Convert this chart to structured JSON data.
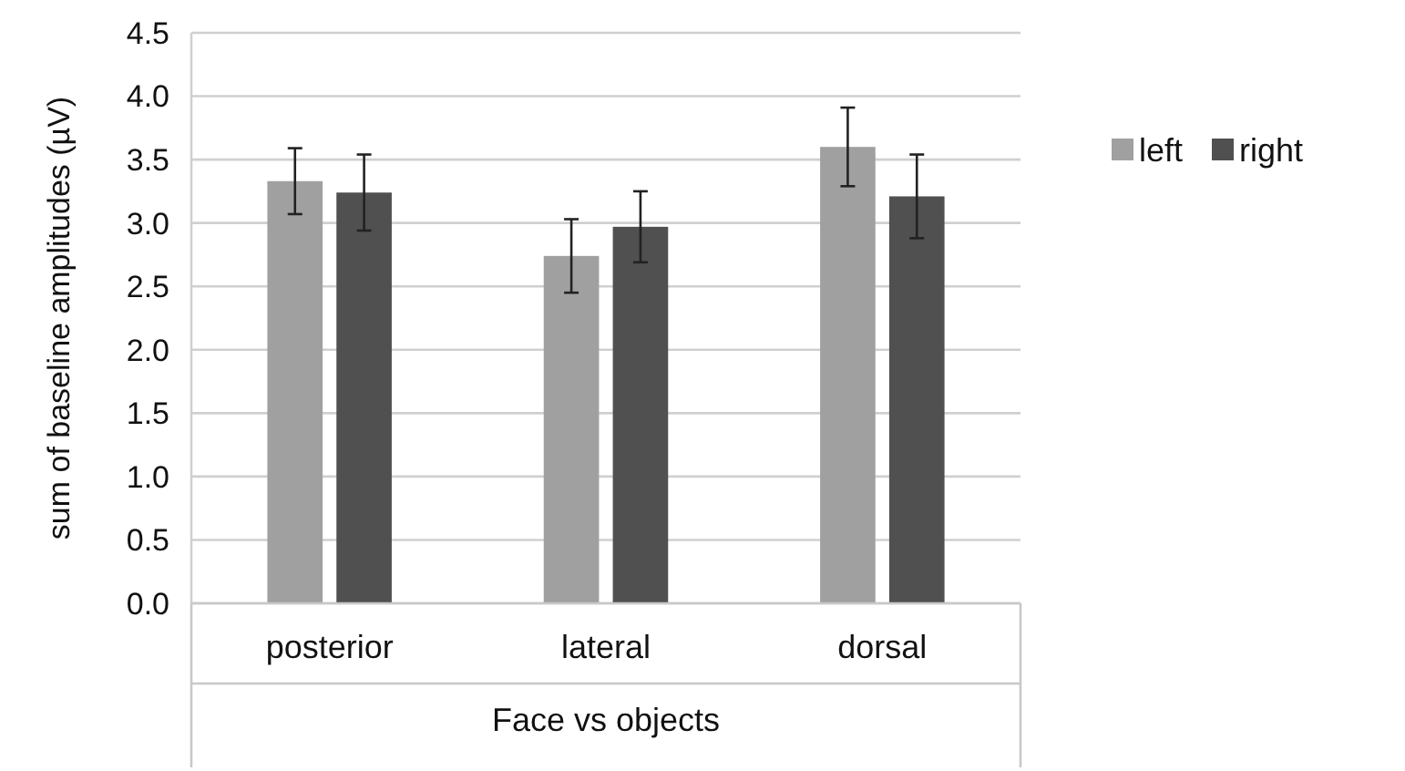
{
  "chart_data": {
    "type": "bar",
    "xlabel": "Face vs objects",
    "ylabel": "sum of baseline amplitudes (µV)",
    "categories": [
      "posterior",
      "lateral",
      "dorsal"
    ],
    "series": [
      {
        "name": "left",
        "color": "#a0a0a0",
        "values": [
          3.33,
          2.74,
          3.6
        ],
        "errors": [
          0.26,
          0.29,
          0.31
        ]
      },
      {
        "name": "right",
        "color": "#505050",
        "values": [
          3.24,
          2.97,
          3.21
        ],
        "errors": [
          0.3,
          0.28,
          0.33
        ]
      }
    ],
    "ylim": [
      0,
      4.5
    ],
    "yticks": [
      {
        "value": 0,
        "label": "0.0"
      },
      {
        "value": 0.5,
        "label": "0.5"
      },
      {
        "value": 1,
        "label": "1.0"
      },
      {
        "value": 1.5,
        "label": "1.5"
      },
      {
        "value": 2,
        "label": "2.0"
      },
      {
        "value": 2.5,
        "label": "2.5"
      },
      {
        "value": 3,
        "label": "3.0"
      },
      {
        "value": 3.5,
        "label": "3.5"
      },
      {
        "value": 4,
        "label": "4.0"
      },
      {
        "value": 4.5,
        "label": "4.5"
      }
    ],
    "grid": "y",
    "legend": "right"
  }
}
